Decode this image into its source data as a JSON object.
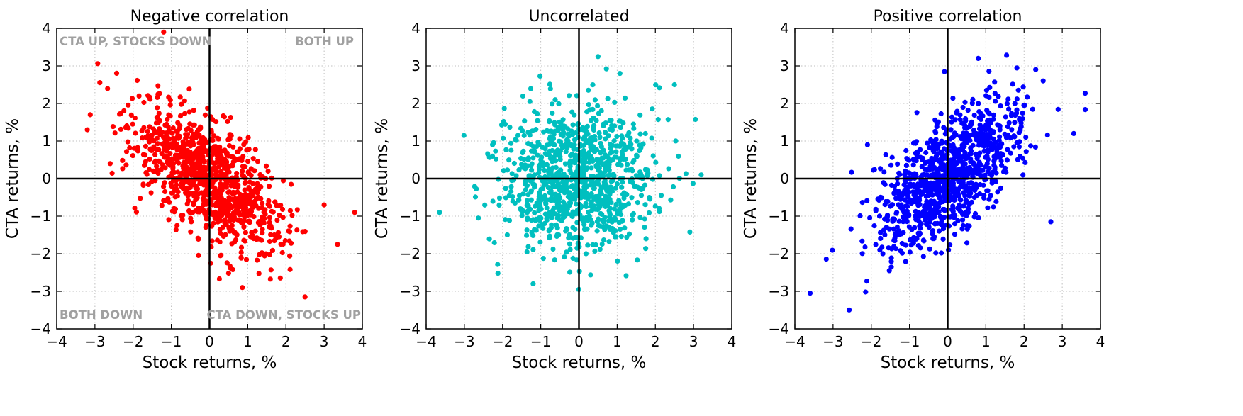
{
  "colors": {
    "negative": "#ff0000",
    "uncorrelated": "#00bfbf",
    "positive": "#0000ff",
    "quadrant_label": "#a0a0a0",
    "grid": "#bfbfbf",
    "axis": "#000000"
  },
  "chart_data": [
    {
      "type": "scatter",
      "title": "Negative correlation",
      "xlabel": "Stock returns, %",
      "ylabel": "CTA returns, %",
      "xlim": [
        -4,
        4
      ],
      "ylim": [
        -4,
        4
      ],
      "xticks": [
        "−4",
        "−3",
        "−2",
        "−1",
        "0",
        "1",
        "2",
        "3",
        "4"
      ],
      "yticks": [
        "−4",
        "−3",
        "−2",
        "−1",
        "0",
        "1",
        "2",
        "3",
        "4"
      ],
      "grid": true,
      "color": "#ff0000",
      "point_count": 1000,
      "correlation": -0.65,
      "std_x": 1.0,
      "std_y": 1.0,
      "annotations": {
        "top_left": "CTA UP, STOCKS DOWN",
        "top_right": "BOTH UP",
        "bottom_left": "BOTH DOWN",
        "bottom_right": "CTA DOWN, STOCKS UP"
      },
      "outliers": [
        {
          "x": -1.2,
          "y": 3.9
        },
        {
          "x": 3.8,
          "y": -0.9
        },
        {
          "x": 3.35,
          "y": -1.75
        },
        {
          "x": 2.5,
          "y": -3.15
        },
        {
          "x": -3.2,
          "y": 1.3
        },
        {
          "x": -2.6,
          "y": 0.4
        },
        {
          "x": 3.0,
          "y": -0.7
        }
      ]
    },
    {
      "type": "scatter",
      "title": "Uncorrelated",
      "xlabel": "Stock returns, %",
      "ylabel": "CTA returns, %",
      "xlim": [
        -4,
        4
      ],
      "ylim": [
        -4,
        4
      ],
      "xticks": [
        "−4",
        "−3",
        "−2",
        "−1",
        "0",
        "1",
        "2",
        "3",
        "4"
      ],
      "yticks": [
        "−4",
        "−3",
        "−2",
        "−1",
        "0",
        "1",
        "2",
        "3",
        "4"
      ],
      "grid": true,
      "color": "#00bfbf",
      "point_count": 1000,
      "correlation": 0.0,
      "std_x": 1.0,
      "std_y": 1.0,
      "outliers": [
        {
          "x": -3.65,
          "y": -0.9
        },
        {
          "x": 0.5,
          "y": 3.25
        },
        {
          "x": 3.2,
          "y": 0.1
        },
        {
          "x": 2.5,
          "y": 2.5
        },
        {
          "x": 0.0,
          "y": -2.95
        },
        {
          "x": -1.2,
          "y": -2.8
        }
      ]
    },
    {
      "type": "scatter",
      "title": "Positive correlation",
      "xlabel": "Stock returns, %",
      "ylabel": "CTA returns, %",
      "xlim": [
        -4,
        4
      ],
      "ylim": [
        -4,
        4
      ],
      "xticks": [
        "−4",
        "−3",
        "−2",
        "−1",
        "0",
        "1",
        "2",
        "3",
        "4"
      ],
      "yticks": [
        "−4",
        "−3",
        "−2",
        "−1",
        "0",
        "1",
        "2",
        "3",
        "4"
      ],
      "grid": true,
      "color": "#0000ff",
      "point_count": 1000,
      "correlation": 0.65,
      "std_x": 1.0,
      "std_y": 1.0,
      "outliers": [
        {
          "x": -3.6,
          "y": -3.05
        },
        {
          "x": 0.8,
          "y": 3.2
        },
        {
          "x": 3.3,
          "y": 1.2
        },
        {
          "x": 2.7,
          "y": -1.15
        },
        {
          "x": -2.1,
          "y": 0.9
        },
        {
          "x": 2.5,
          "y": 2.6
        }
      ]
    }
  ]
}
